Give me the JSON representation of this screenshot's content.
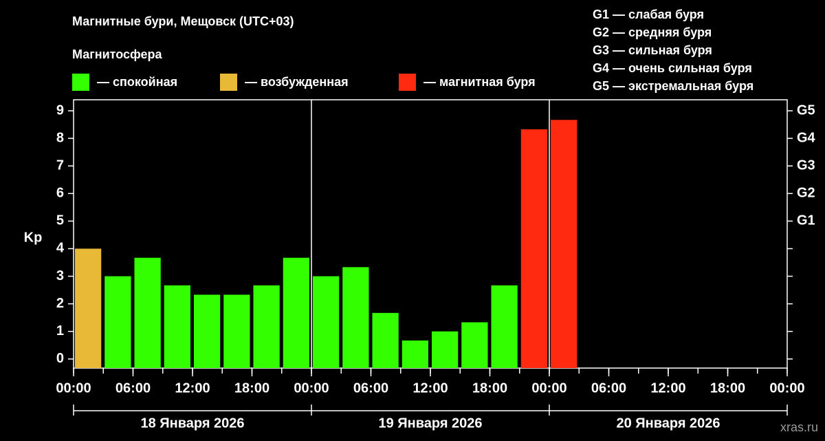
{
  "chart_data": {
    "type": "bar",
    "title": "Магнитные бури, Мещовск (UTC+03)",
    "legend_title": "Магнитосфера",
    "legend": [
      {
        "label": "— спокойная",
        "color": "#33ff00"
      },
      {
        "label": "— возбужденная",
        "color": "#e8b936"
      },
      {
        "label": "— магнитная буря",
        "color": "#ff2a10"
      }
    ],
    "storm_levels": [
      "G1 — слабая буря",
      "G2 — средняя буря",
      "G3 — сильная буря",
      "G4 — очень сильная буря",
      "G5 — экстремальная буря"
    ],
    "ylabel": "Kp",
    "x": [
      0,
      3,
      6,
      9,
      12,
      15,
      18,
      21,
      24,
      27,
      30,
      33,
      36,
      39,
      42,
      45,
      48
    ],
    "values": [
      4,
      3,
      3.67,
      2.67,
      2.33,
      2.33,
      2.67,
      3.67,
      3,
      3.33,
      1.67,
      0.67,
      1,
      1.33,
      2.67,
      8.33,
      8.67
    ],
    "colors": [
      "#e8b936",
      "#33ff00",
      "#33ff00",
      "#33ff00",
      "#33ff00",
      "#33ff00",
      "#33ff00",
      "#33ff00",
      "#33ff00",
      "#33ff00",
      "#33ff00",
      "#33ff00",
      "#33ff00",
      "#33ff00",
      "#33ff00",
      "#ff2a10",
      "#ff2a10"
    ],
    "bar_width": 3,
    "xlim": [
      0,
      72
    ],
    "xticks": [
      {
        "value": 0,
        "label": "00:00"
      },
      {
        "value": 6,
        "label": "06:00"
      },
      {
        "value": 12,
        "label": "12:00"
      },
      {
        "value": 18,
        "label": "18:00"
      },
      {
        "value": 24,
        "label": "00:00"
      },
      {
        "value": 30,
        "label": "06:00"
      },
      {
        "value": 36,
        "label": "12:00"
      },
      {
        "value": 42,
        "label": "18:00"
      },
      {
        "value": 48,
        "label": "00:00"
      },
      {
        "value": 54,
        "label": "06:00"
      },
      {
        "value": 60,
        "label": "12:00"
      },
      {
        "value": 66,
        "label": "18:00"
      },
      {
        "value": 72,
        "label": "00:00"
      }
    ],
    "days": [
      "18 Января 2026",
      "19 Января 2026",
      "20 Января 2026"
    ],
    "ylim": [
      -0.33,
      9.4
    ],
    "yticks": [
      0,
      1,
      2,
      3,
      4,
      5,
      6,
      7,
      8,
      9
    ],
    "y2ticks": [
      {
        "value": 5,
        "label": "G1"
      },
      {
        "value": 6,
        "label": "G2"
      },
      {
        "value": 7,
        "label": "G3"
      },
      {
        "value": 8,
        "label": "G4"
      },
      {
        "value": 9,
        "label": "G5"
      }
    ],
    "watermark": "xras.ru"
  }
}
